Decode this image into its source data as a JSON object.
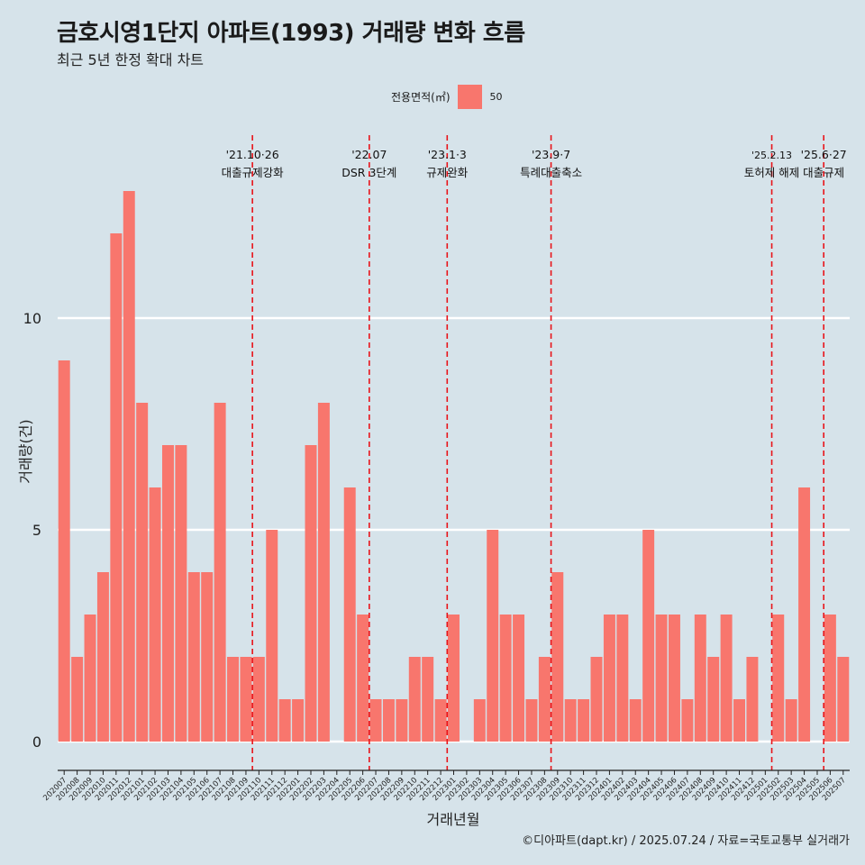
{
  "header": {
    "title": "금호시영1단지 아파트(1993) 거래량 변화 흐름",
    "subtitle": "최근 5년 한정 확대 차트"
  },
  "legend": {
    "title": "전용면적(㎡)",
    "label": "50",
    "color": "#f8766d"
  },
  "caption": "©디아파트(dapt.kr) / 2025.07.24 / 자료=국토교통부 실거래가",
  "chart_data": {
    "type": "bar",
    "xlabel": "거래년월",
    "ylabel": "거래량(건)",
    "ylim": [
      0,
      13
    ],
    "yticks": [
      0,
      5,
      10
    ],
    "grid": true,
    "legend_position": "top",
    "bar_color": "#f8766d",
    "categories": [
      "202007",
      "202008",
      "202009",
      "202010",
      "202011",
      "202012",
      "202101",
      "202102",
      "202103",
      "202104",
      "202105",
      "202106",
      "202107",
      "202108",
      "202109",
      "202110",
      "202111",
      "202112",
      "202201",
      "202202",
      "202203",
      "202204",
      "202205",
      "202206",
      "202207",
      "202208",
      "202209",
      "202210",
      "202211",
      "202212",
      "202301",
      "202302",
      "202303",
      "202304",
      "202305",
      "202306",
      "202307",
      "202308",
      "202309",
      "202310",
      "202311",
      "202312",
      "202401",
      "202402",
      "202403",
      "202404",
      "202405",
      "202406",
      "202407",
      "202408",
      "202409",
      "202410",
      "202411",
      "202412",
      "202501",
      "202502",
      "202503",
      "202504",
      "202505",
      "202506",
      "202507"
    ],
    "series": [
      {
        "values": [
          9,
          2,
          3,
          4,
          12,
          13,
          8,
          6,
          7,
          7,
          4,
          4,
          8,
          2,
          2,
          2,
          5,
          1,
          1,
          7,
          8,
          0,
          6,
          3,
          1,
          1,
          1,
          2,
          2,
          1,
          3,
          0,
          1,
          5,
          3,
          3,
          1,
          2,
          4,
          1,
          1,
          2,
          3,
          3,
          1,
          5,
          3,
          3,
          1,
          3,
          2,
          3,
          1,
          2,
          0,
          3,
          1,
          6,
          0,
          3,
          2
        ]
      }
    ],
    "events": [
      {
        "date": "'21.10·26",
        "label": "대출규제강화",
        "x_position": 15.0
      },
      {
        "date": "'22.07",
        "label": "DSR 3단계",
        "x_position": 24.0
      },
      {
        "date": "'23.1·3",
        "label": "규제완화",
        "x_position": 30.0
      },
      {
        "date": "'23.9·7",
        "label": "특례대출축소",
        "x_position": 38.0
      },
      {
        "date": "'25.2.13",
        "label": "토허제 해제",
        "x_position": 55.0
      },
      {
        "date": "'25.6·27",
        "label": "대출규제",
        "x_position": 59.0
      }
    ],
    "event_line_color": "#e8141a"
  }
}
